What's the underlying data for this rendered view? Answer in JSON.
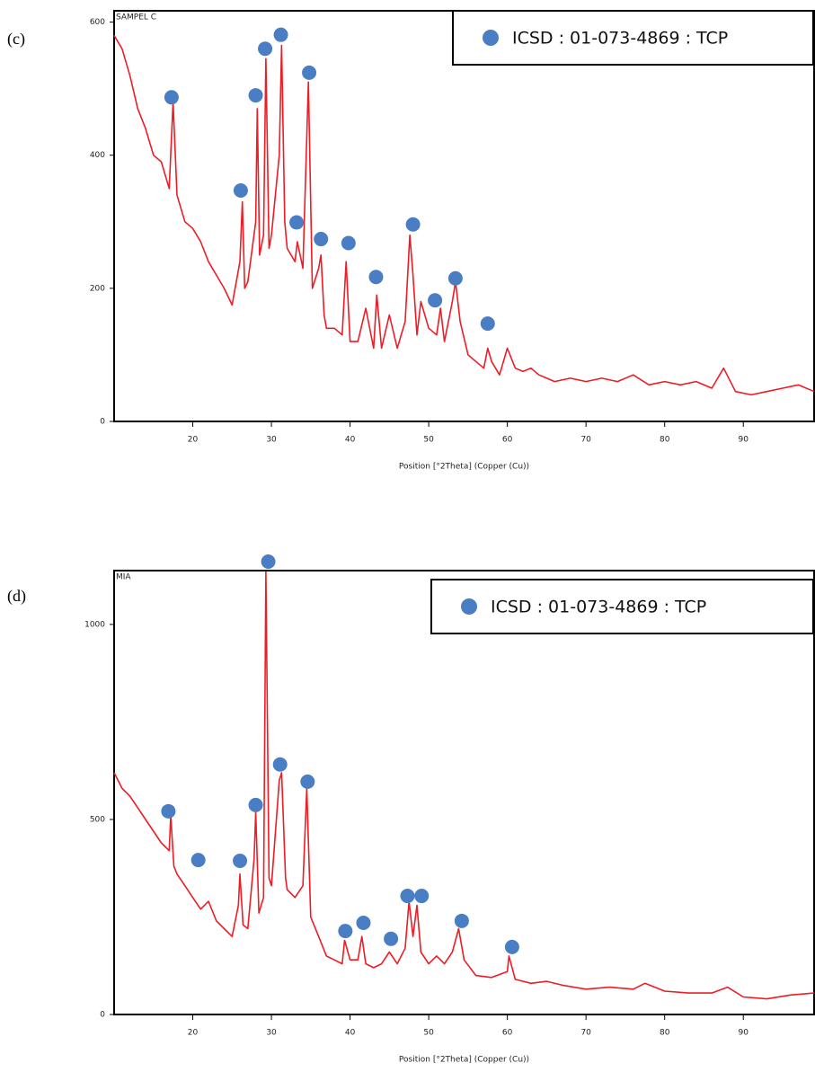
{
  "chart_data": [
    {
      "type": "line",
      "panel_label": "(c)",
      "title": "SAMPEL C",
      "x_label": "Position [°2Theta] (Copper (Cu))",
      "xlim": [
        10,
        99
      ],
      "ylim": [
        0,
        617
      ],
      "xticks": [
        20,
        30,
        40,
        50,
        60,
        70,
        80,
        90
      ],
      "yticks": [
        0,
        200,
        400,
        600
      ],
      "legend": "upper right",
      "series": [
        {
          "type": "line",
          "color": "#ee1c25",
          "x": [
            10,
            11,
            12,
            13,
            14,
            15,
            16,
            17,
            17.5,
            18,
            19,
            20,
            21,
            22,
            23,
            24,
            25,
            26,
            26.3,
            26.6,
            27,
            28,
            28.2,
            28.5,
            29,
            29.3,
            29.7,
            30,
            31,
            31.3,
            31.7,
            32,
            33,
            33.3,
            34,
            34.7,
            35.2,
            36,
            36.3,
            36.7,
            37,
            38,
            39,
            39.5,
            40,
            41,
            42,
            43,
            43.4,
            44,
            45,
            46,
            47,
            47.6,
            48,
            48.5,
            49,
            50,
            51,
            51.5,
            52,
            53,
            53.4,
            54,
            55,
            56,
            57,
            57.5,
            58,
            59,
            60,
            61,
            62,
            63,
            64,
            65,
            66,
            68,
            70,
            72,
            74,
            76,
            78,
            80,
            82,
            84,
            86,
            87.5,
            89,
            91,
            93,
            95,
            97,
            99
          ],
          "values": [
            580,
            560,
            520,
            470,
            440,
            400,
            390,
            350,
            480,
            340,
            300,
            290,
            270,
            240,
            220,
            200,
            175,
            240,
            330,
            200,
            210,
            300,
            470,
            250,
            280,
            545,
            260,
            280,
            400,
            565,
            300,
            260,
            240,
            270,
            230,
            510,
            200,
            230,
            250,
            160,
            140,
            140,
            130,
            240,
            120,
            120,
            170,
            110,
            190,
            110,
            160,
            110,
            150,
            280,
            220,
            130,
            180,
            140,
            130,
            170,
            120,
            180,
            210,
            150,
            100,
            90,
            80,
            110,
            90,
            70,
            110,
            80,
            75,
            80,
            70,
            65,
            60,
            65,
            60,
            65,
            60,
            70,
            55,
            60,
            55,
            60,
            50,
            80,
            45,
            40,
            45,
            50,
            55,
            45
          ]
        },
        {
          "type": "scatter",
          "name": "ICSD : 01-073-4869 : TCP",
          "color": "#4a7ec4",
          "x": [
            17.3,
            26.1,
            28.0,
            29.2,
            31.2,
            33.2,
            34.8,
            36.3,
            39.8,
            43.3,
            48.0,
            50.8,
            53.4,
            57.5
          ],
          "values": [
            487,
            347,
            490,
            560,
            581,
            299,
            524,
            274,
            268,
            217,
            296,
            182,
            215,
            147
          ]
        }
      ]
    },
    {
      "type": "line",
      "panel_label": "(d)",
      "title": "MIA",
      "x_label": "Position [°2Theta] (Copper (Cu))",
      "xlim": [
        10,
        99
      ],
      "ylim": [
        0,
        1138
      ],
      "xticks": [
        20,
        30,
        40,
        50,
        60,
        70,
        80,
        90
      ],
      "yticks": [
        0,
        500,
        1000
      ],
      "legend": "upper right",
      "series": [
        {
          "type": "line",
          "color": "#ee1c25",
          "x": [
            10,
            11,
            12,
            13,
            14,
            15,
            16,
            17,
            17.2,
            17.6,
            18,
            19,
            20,
            21,
            22,
            23,
            24,
            25,
            25.8,
            26,
            26.4,
            27,
            27.8,
            28,
            28.4,
            29,
            29.3,
            29.7,
            30,
            31,
            31.3,
            31.8,
            32,
            33,
            34,
            34.5,
            35,
            36,
            37,
            38,
            39,
            39.3,
            40,
            41,
            41.5,
            42,
            43,
            44,
            45,
            46,
            47,
            47.5,
            48,
            48.5,
            49,
            50,
            51,
            52,
            53,
            53.8,
            54.5,
            56,
            58,
            60,
            60.2,
            61,
            63,
            65,
            67,
            70,
            73,
            76,
            77.5,
            80,
            83,
            86,
            88,
            90,
            93,
            96,
            99
          ],
          "values": [
            620,
            580,
            560,
            530,
            500,
            470,
            440,
            420,
            510,
            380,
            360,
            330,
            300,
            270,
            290,
            240,
            220,
            200,
            280,
            360,
            230,
            220,
            400,
            520,
            260,
            300,
            1135,
            350,
            330,
            600,
            620,
            350,
            320,
            300,
            330,
            580,
            250,
            200,
            150,
            140,
            130,
            190,
            140,
            140,
            200,
            130,
            120,
            130,
            160,
            130,
            170,
            290,
            200,
            280,
            160,
            130,
            150,
            130,
            160,
            220,
            140,
            100,
            95,
            110,
            150,
            90,
            80,
            85,
            75,
            65,
            70,
            65,
            80,
            60,
            55,
            55,
            70,
            45,
            40,
            50,
            55
          ]
        },
        {
          "type": "scatter",
          "name": "ICSD : 01-073-4869 : TCP",
          "color": "#4a7ec4",
          "x": [
            16.9,
            20.7,
            26.0,
            28.0,
            29.6,
            31.1,
            34.6,
            39.4,
            41.7,
            45.2,
            47.3,
            49.1,
            54.2,
            60.6
          ],
          "values": [
            521,
            396,
            394,
            537,
            1161,
            641,
            597,
            214,
            235,
            194,
            304,
            304,
            240,
            173
          ]
        }
      ]
    }
  ]
}
